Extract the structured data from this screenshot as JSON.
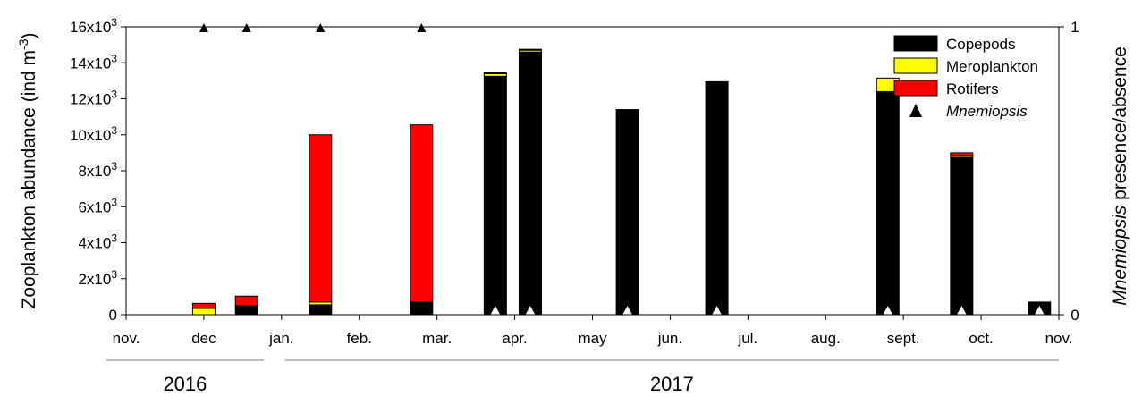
{
  "chart_data": {
    "type": "bar",
    "stacked": true,
    "ylabel_prefix": "Zooplankton abundance (ind m",
    "ylabel_exp": "-3",
    "ylabel_suffix": ")",
    "y2label_italic": "Mnemiopsis",
    "y2label_rest": " presence/absence",
    "ylim": [
      0,
      16000
    ],
    "y_ticks": [
      {
        "value": 0,
        "base": "0",
        "exp": ""
      },
      {
        "value": 2000,
        "base": "2x10",
        "exp": "3"
      },
      {
        "value": 4000,
        "base": "4x10",
        "exp": "3"
      },
      {
        "value": 6000,
        "base": "6x10",
        "exp": "3"
      },
      {
        "value": 8000,
        "base": "8x10",
        "exp": "3"
      },
      {
        "value": 10000,
        "base": "10x10",
        "exp": "3"
      },
      {
        "value": 12000,
        "base": "12x10",
        "exp": "3"
      },
      {
        "value": 14000,
        "base": "14x10",
        "exp": "3"
      },
      {
        "value": 16000,
        "base": "16x10",
        "exp": "3"
      }
    ],
    "y2_ticks": [
      {
        "value": 0,
        "label": "0"
      },
      {
        "value": 1,
        "label": "1"
      }
    ],
    "x_ticks": [
      "nov.",
      "dec",
      "jan.",
      "feb.",
      "mar.",
      "apr.",
      "may",
      "jun.",
      "jul.",
      "aug.",
      "sept.",
      "oct.",
      "nov."
    ],
    "years": [
      {
        "label": "2016",
        "from_month": 0,
        "to_month": 2
      },
      {
        "label": "2017",
        "from_month": 2,
        "to_month": 12
      }
    ],
    "legend_position": "top-right",
    "series": [
      {
        "name": "Copepods",
        "color": "#000000"
      },
      {
        "name": "Meroplankton",
        "color": "#ffff00"
      },
      {
        "name": "Rotifers",
        "color": "#ff0000"
      }
    ],
    "marker_series": {
      "name": "Mnemiopsis",
      "present_value": 1,
      "absent_value": 0
    },
    "samples": [
      {
        "month": 1.0,
        "copepods": 0,
        "meroplankton": 350,
        "rotifers": 280,
        "mnemiopsis": 1
      },
      {
        "month": 1.55,
        "copepods": 500,
        "meroplankton": 0,
        "rotifers": 530,
        "mnemiopsis": 1
      },
      {
        "month": 2.5,
        "copepods": 550,
        "meroplankton": 150,
        "rotifers": 9300,
        "mnemiopsis": 1
      },
      {
        "month": 3.8,
        "copepods": 700,
        "meroplankton": 0,
        "rotifers": 9850,
        "mnemiopsis": 1
      },
      {
        "month": 4.75,
        "copepods": 13250,
        "meroplankton": 150,
        "rotifers": 50,
        "mnemiopsis": 0
      },
      {
        "month": 5.2,
        "copepods": 14600,
        "meroplankton": 100,
        "rotifers": 50,
        "mnemiopsis": 0
      },
      {
        "month": 6.45,
        "copepods": 11400,
        "meroplankton": 0,
        "rotifers": 0,
        "mnemiopsis": 0
      },
      {
        "month": 7.6,
        "copepods": 12950,
        "meroplankton": 0,
        "rotifers": 0,
        "mnemiopsis": 0
      },
      {
        "month": 9.8,
        "copepods": 12400,
        "meroplankton": 750,
        "rotifers": 0,
        "mnemiopsis": 0
      },
      {
        "month": 10.75,
        "copepods": 8750,
        "meroplankton": 100,
        "rotifers": 150,
        "mnemiopsis": 0
      },
      {
        "month": 11.75,
        "copepods": 700,
        "meroplankton": 0,
        "rotifers": 0,
        "mnemiopsis": 0
      }
    ]
  }
}
